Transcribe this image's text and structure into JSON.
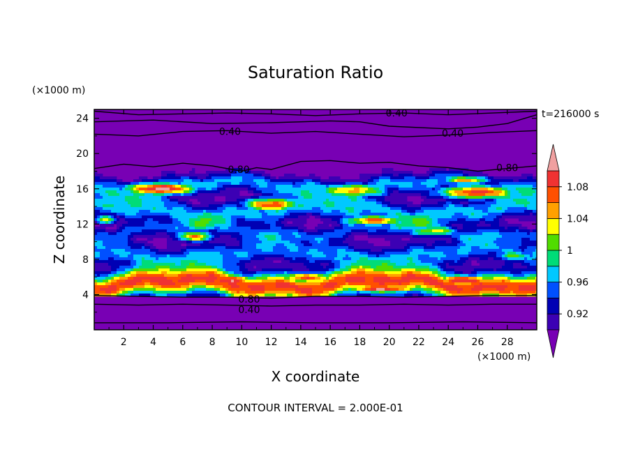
{
  "chart_data": {
    "type": "heatmap",
    "title": "Saturation Ratio",
    "xlabel": "X coordinate",
    "ylabel": "Z coordinate",
    "x_unit": "(×1000 m)",
    "y_unit": "(×1000 m)",
    "time_label": "t=216000 s",
    "footer": "CONTOUR INTERVAL = 2.000E-01",
    "x_ticks": [
      "2",
      "4",
      "6",
      "8",
      "10",
      "12",
      "14",
      "16",
      "18",
      "20",
      "22",
      "24",
      "26",
      "28"
    ],
    "y_ticks": [
      "4",
      "8",
      "12",
      "16",
      "20",
      "24"
    ],
    "xlim": [
      0,
      30
    ],
    "ylim": [
      0,
      25
    ],
    "colorbar": {
      "labels": [
        "0.92",
        "0.96",
        "1",
        "1.04",
        "1.08"
      ],
      "bins": [
        {
          "range": "<0.90",
          "color": "#7800b4"
        },
        {
          "range": "0.90-0.92",
          "color": "#3c00b4"
        },
        {
          "range": "0.92-0.94",
          "color": "#0000b4"
        },
        {
          "range": "0.94-0.96",
          "color": "#0050ff"
        },
        {
          "range": "0.96-0.98",
          "color": "#00c8ff"
        },
        {
          "range": "0.98-1.00",
          "color": "#00dc78"
        },
        {
          "range": "1.00-1.02",
          "color": "#50dc00"
        },
        {
          "range": "1.02-1.04",
          "color": "#ffff00"
        },
        {
          "range": "1.04-1.06",
          "color": "#ffa000"
        },
        {
          "range": "1.06-1.08",
          "color": "#ff5000"
        },
        {
          "range": "1.08-1.10",
          "color": "#f03232"
        },
        {
          "range": ">1.10",
          "color": "#f0a0a0"
        }
      ]
    },
    "contour_labels": [
      {
        "text": "0.40",
        "x": 20.5,
        "z": 24.6
      },
      {
        "text": "0.40",
        "x": 9.2,
        "z": 22.5
      },
      {
        "text": "0.40",
        "x": 24.3,
        "z": 22.3
      },
      {
        "text": "0.80",
        "x": 9.8,
        "z": 18.2
      },
      {
        "text": "0.80",
        "x": 28.0,
        "z": 18.4
      },
      {
        "text": "0.80",
        "x": 10.5,
        "z": 3.5
      },
      {
        "text": "0.40",
        "x": 10.5,
        "z": 2.3
      }
    ],
    "contour_lines": [
      {
        "level": "0.40",
        "x": [
          0,
          3,
          6,
          9,
          12,
          15,
          18,
          21,
          24,
          27,
          30
        ],
        "z": [
          22.2,
          22.0,
          22.5,
          22.6,
          22.3,
          22.5,
          22.2,
          21.9,
          22.1,
          22.4,
          22.6
        ]
      },
      {
        "level": "0.40",
        "x": [
          0,
          4,
          8,
          12,
          16,
          18,
          20,
          24,
          26,
          28,
          30
        ],
        "z": [
          23.6,
          23.8,
          23.4,
          23.5,
          23.7,
          23.6,
          23.1,
          22.8,
          23.0,
          23.4,
          24.4
        ]
      },
      {
        "level": "0.40",
        "x": [
          0,
          3,
          6,
          9,
          12,
          15,
          18,
          21,
          24,
          27,
          30
        ],
        "z": [
          24.8,
          24.4,
          24.5,
          24.6,
          24.5,
          24.3,
          24.5,
          24.6,
          24.4,
          24.6,
          24.8
        ]
      },
      {
        "level": "0.80",
        "x": [
          0,
          2,
          4,
          6,
          8,
          10,
          11,
          12,
          14,
          16,
          18,
          20,
          22,
          24,
          26,
          28,
          30
        ],
        "z": [
          18.3,
          18.8,
          18.5,
          18.9,
          18.6,
          18.0,
          18.4,
          18.2,
          19.1,
          19.2,
          18.9,
          19.0,
          18.6,
          18.4,
          18.0,
          18.3,
          18.6
        ]
      },
      {
        "level": "0.80",
        "x": [
          0,
          3,
          6,
          9,
          12,
          15,
          18,
          21,
          24,
          27,
          30
        ],
        "z": [
          3.9,
          3.8,
          3.7,
          3.7,
          3.6,
          3.8,
          3.8,
          3.7,
          3.8,
          3.9,
          3.9
        ]
      },
      {
        "level": "0.40",
        "x": [
          0,
          3,
          6,
          9,
          12,
          15,
          18,
          21,
          24,
          27,
          30
        ],
        "z": [
          2.9,
          2.8,
          2.9,
          2.8,
          2.7,
          2.8,
          2.8,
          2.9,
          2.8,
          2.9,
          2.9
        ]
      },
      {
        "level": "0.40",
        "x": [
          0,
          5,
          10,
          15,
          20,
          25,
          30
        ],
        "z": [
          0.8,
          0.8,
          0.9,
          0.8,
          0.8,
          0.9,
          0.8
        ]
      }
    ],
    "field_features": [
      {
        "x": 4.5,
        "z": 16.0,
        "sx": 2.6,
        "sz": 0.7,
        "value": 1.11
      },
      {
        "x": 12.0,
        "z": 14.2,
        "sx": 2.0,
        "sz": 0.8,
        "value": 1.08
      },
      {
        "x": 17.5,
        "z": 15.8,
        "sx": 2.5,
        "sz": 0.8,
        "value": 1.05
      },
      {
        "x": 26.0,
        "z": 15.6,
        "sx": 2.8,
        "sz": 0.8,
        "value": 1.09
      },
      {
        "x": 25.2,
        "z": 17.0,
        "sx": 1.6,
        "sz": 0.4,
        "value": 1.06
      },
      {
        "x": 19.0,
        "z": 12.4,
        "sx": 2.2,
        "sz": 0.6,
        "value": 1.07
      },
      {
        "x": 6.8,
        "z": 10.6,
        "sx": 1.3,
        "sz": 0.6,
        "value": 1.06
      },
      {
        "x": 23.0,
        "z": 11.2,
        "sx": 1.8,
        "sz": 0.6,
        "value": 1.03
      },
      {
        "x": 0.8,
        "z": 12.5,
        "sx": 0.8,
        "sz": 0.5,
        "value": 1.02
      },
      {
        "x": 28.5,
        "z": 8.4,
        "sx": 1.6,
        "sz": 0.6,
        "value": 1.0
      },
      {
        "x": 3.0,
        "z": 5.8,
        "sx": 2.4,
        "sz": 0.6,
        "value": 1.09
      },
      {
        "x": 9.0,
        "z": 5.6,
        "sx": 2.4,
        "sz": 0.6,
        "value": 1.1
      },
      {
        "x": 14.5,
        "z": 5.9,
        "sx": 2.4,
        "sz": 0.6,
        "value": 1.07
      },
      {
        "x": 19.5,
        "z": 4.7,
        "sx": 2.6,
        "sz": 0.5,
        "value": 1.11
      },
      {
        "x": 25.0,
        "z": 5.6,
        "sx": 2.6,
        "sz": 0.6,
        "value": 1.1
      }
    ]
  }
}
